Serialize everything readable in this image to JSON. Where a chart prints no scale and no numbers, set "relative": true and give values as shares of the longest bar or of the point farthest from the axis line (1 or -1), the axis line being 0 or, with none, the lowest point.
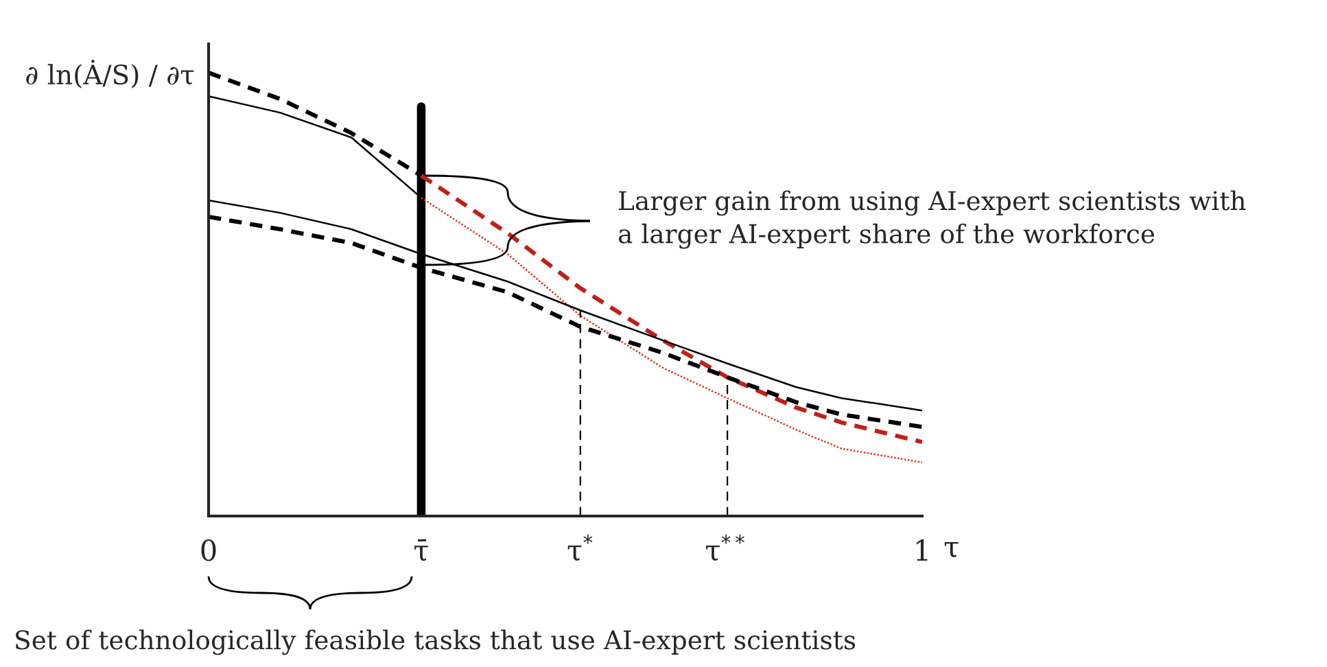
{
  "chart_data": {
    "type": "line",
    "relative": true,
    "xlabel": "τ",
    "ylabel": "∂ ln(Ȧ/S) / ∂τ",
    "xlim": [
      0,
      1
    ],
    "ylim": [
      0,
      1.065
    ],
    "xticks": [
      0,
      {
        "value": 0.298,
        "label": "τ̄"
      },
      {
        "value": 0.521,
        "label": "τ$^{*}$"
      },
      {
        "value": 0.727,
        "label": "τ$^{**}$"
      },
      1
    ],
    "grid": false,
    "legend": false,
    "marker": "none",
    "series": [
      {
        "color": "#000000",
        "line_style": "dashed",
        "x": [
          0,
          0.1,
          0.2,
          0.298
        ],
        "values": [
          1.0,
          0.941,
          0.864,
          0.768
        ]
      },
      {
        "color": "#c0201a",
        "line_style": "dashed",
        "x": [
          0.298,
          0.419,
          0.521,
          0.637,
          0.727,
          0.823,
          0.887,
          1.0
        ],
        "values": [
          0.768,
          0.638,
          0.514,
          0.396,
          0.313,
          0.245,
          0.211,
          0.167
        ]
      },
      {
        "color": "#000000",
        "line_style": "solid",
        "x": [
          0,
          0.1,
          0.2,
          0.298
        ],
        "values": [
          0.947,
          0.91,
          0.854,
          0.718
        ]
      },
      {
        "color": "#e03020",
        "line_style": "dotted",
        "x": [
          0.298,
          0.419,
          0.521,
          0.637,
          0.727,
          0.823,
          0.887,
          1.0
        ],
        "values": [
          0.718,
          0.591,
          0.452,
          0.334,
          0.266,
          0.195,
          0.152,
          0.121
        ]
      },
      {
        "color": "#000000",
        "line_style": "solid",
        "x": [
          0,
          0.1,
          0.2,
          0.298,
          0.419,
          0.521,
          0.637,
          0.727,
          0.823,
          0.887,
          1.0
        ],
        "values": [
          0.712,
          0.684,
          0.647,
          0.591,
          0.529,
          0.464,
          0.396,
          0.344,
          0.291,
          0.266,
          0.238
        ]
      },
      {
        "color": "#000000",
        "line_style": "dashed",
        "x": [
          0,
          0.1,
          0.2,
          0.298,
          0.419,
          0.521,
          0.637,
          0.727,
          0.823,
          0.887,
          1.0
        ],
        "values": [
          0.675,
          0.647,
          0.616,
          0.56,
          0.505,
          0.427,
          0.368,
          0.313,
          0.257,
          0.229,
          0.201
        ]
      },
      {
        "color": "#000000",
        "line_style": "dashed",
        "x": [
          0.521,
          0.521
        ],
        "values": [
          0,
          0.464
        ]
      },
      {
        "color": "#000000",
        "line_style": "dashed",
        "x": [
          0.727,
          0.727
        ],
        "values": [
          0,
          0.313
        ]
      }
    ],
    "ref_lines": [
      {
        "axis": "x",
        "value": 0.298,
        "color": "#000000",
        "line_style": "solid"
      }
    ],
    "annotations": [
      "Larger gain from using AI-expert scientists with\na larger AI-expert share of the workforce",
      "Set of technologically feasible tasks that use AI-expert scientists"
    ]
  }
}
